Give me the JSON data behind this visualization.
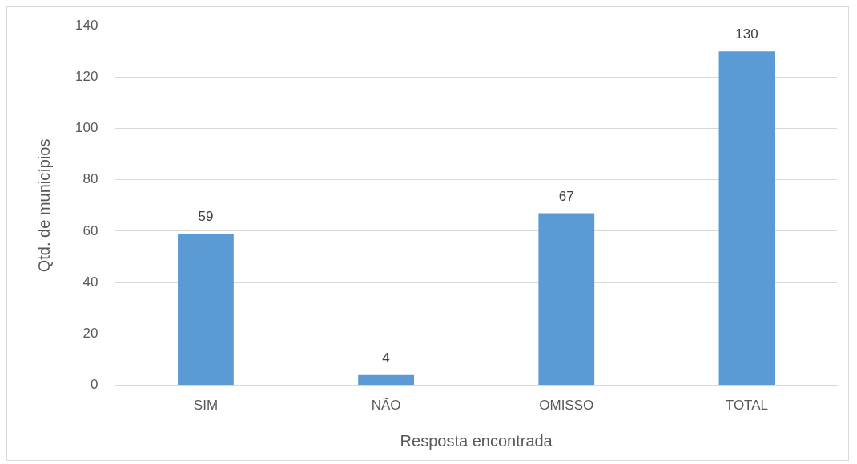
{
  "chart_data": {
    "type": "bar",
    "xlabel": "Resposta encontrada",
    "ylabel": "Qtd. de municípios",
    "categories": [
      "SIM",
      "NÃO",
      "OMISSO",
      "TOTAL"
    ],
    "values": [
      59,
      4,
      67,
      130
    ],
    "color": "#5b9bd5",
    "ylim": [
      0,
      140
    ],
    "yticks": [
      0,
      20,
      40,
      60,
      80,
      100,
      120,
      140
    ],
    "grid": "y",
    "legend": false,
    "data_labels": true
  }
}
